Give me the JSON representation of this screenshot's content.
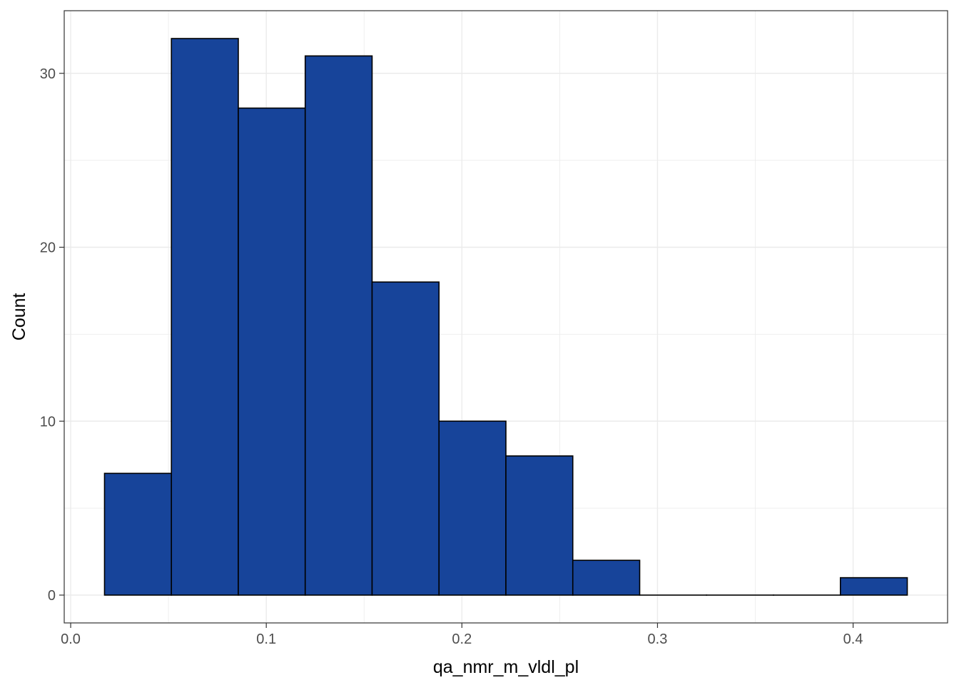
{
  "chart_data": {
    "type": "bar",
    "subtype": "histogram",
    "xlabel": "qa_nmr_m_vldl_pl",
    "ylabel": "Count",
    "bins": [
      {
        "x0": 0.0173,
        "x1": 0.0515,
        "count": 7
      },
      {
        "x0": 0.0515,
        "x1": 0.0857,
        "count": 32
      },
      {
        "x0": 0.0857,
        "x1": 0.1199,
        "count": 28
      },
      {
        "x0": 0.1199,
        "x1": 0.1541,
        "count": 31
      },
      {
        "x0": 0.1541,
        "x1": 0.1883,
        "count": 18
      },
      {
        "x0": 0.1883,
        "x1": 0.2225,
        "count": 10
      },
      {
        "x0": 0.2225,
        "x1": 0.2567,
        "count": 8
      },
      {
        "x0": 0.2567,
        "x1": 0.2909,
        "count": 2
      },
      {
        "x0": 0.2909,
        "x1": 0.3251,
        "count": 0
      },
      {
        "x0": 0.3251,
        "x1": 0.3593,
        "count": 0
      },
      {
        "x0": 0.3593,
        "x1": 0.3935,
        "count": 0
      },
      {
        "x0": 0.3935,
        "x1": 0.4277,
        "count": 1
      }
    ],
    "xlim": [
      -0.0033,
      0.4483
    ],
    "ylim": [
      -1.6,
      33.6
    ],
    "xticks": [
      "0.0",
      "0.1",
      "0.2",
      "0.3",
      "0.4"
    ],
    "xtick_values": [
      0.0,
      0.1,
      0.2,
      0.3,
      0.4
    ],
    "yticks": [
      "0",
      "10",
      "20",
      "30"
    ],
    "ytick_values": [
      0,
      10,
      20,
      30
    ],
    "grid": true,
    "colors": {
      "fill": "#17449A",
      "stroke": "#000000",
      "grid": "#ebebeb",
      "panel_border": "#333333"
    }
  }
}
